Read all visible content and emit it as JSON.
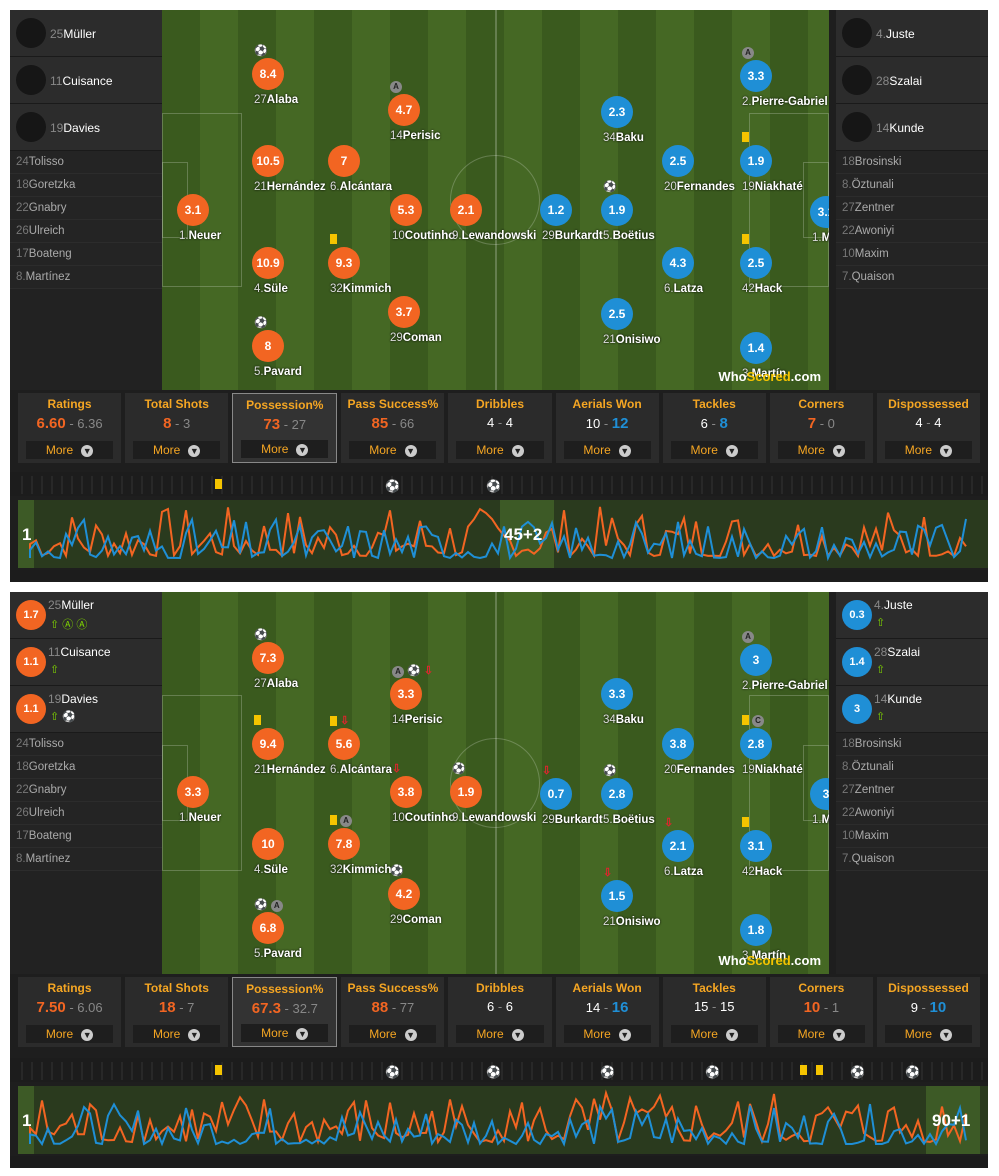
{
  "snapshots": [
    {
      "home_bench": [
        {
          "num": "25",
          "name": "Müller"
        },
        {
          "num": "11",
          "name": "Cuisance"
        },
        {
          "num": "19",
          "name": "Davies"
        }
      ],
      "home_unused": [
        {
          "num": "24",
          "name": "Tolisso"
        },
        {
          "num": "18",
          "name": "Goretzka"
        },
        {
          "num": "22",
          "name": "Gnabry"
        },
        {
          "num": "26",
          "name": "Ulreich"
        },
        {
          "num": "17",
          "name": "Boateng"
        },
        {
          "num": "8.",
          "name": "Martínez"
        }
      ],
      "away_bench": [
        {
          "num": "4.",
          "name": "Juste"
        },
        {
          "num": "28",
          "name": "Szalai"
        },
        {
          "num": "14",
          "name": "Kunde"
        }
      ],
      "away_unused": [
        {
          "num": "18",
          "name": "Brosinski"
        },
        {
          "num": "8.",
          "name": "Öztunali"
        },
        {
          "num": "27",
          "name": "Zentner"
        },
        {
          "num": "22",
          "name": "Awoniyi"
        },
        {
          "num": "10",
          "name": "Maxim"
        },
        {
          "num": "7.",
          "name": "Quaison"
        }
      ],
      "players": [
        {
          "team": "h",
          "rating": "8.4",
          "num": "27",
          "name": "Alaba",
          "icons": "⚽"
        },
        {
          "team": "h",
          "rating": "4.7",
          "num": "14",
          "name": "Perisic",
          "icons": "A"
        },
        {
          "team": "h",
          "rating": "10.5",
          "num": "21",
          "name": "Hernández",
          "icons": ""
        },
        {
          "team": "h",
          "rating": "7",
          "num": "6.",
          "name": "Alcántara",
          "icons": ""
        },
        {
          "team": "h",
          "rating": "3.1",
          "num": "1.",
          "name": "Neuer",
          "icons": ""
        },
        {
          "team": "h",
          "rating": "5.3",
          "num": "10",
          "name": "Coutinho",
          "icons": ""
        },
        {
          "team": "h",
          "rating": "2.1",
          "num": "9.",
          "name": "Lewandowski",
          "icons": ""
        },
        {
          "team": "h",
          "rating": "10.9",
          "num": "4.",
          "name": "Süle",
          "icons": ""
        },
        {
          "team": "h",
          "rating": "9.3",
          "num": "32",
          "name": "Kimmich",
          "icons": "Y"
        },
        {
          "team": "h",
          "rating": "3.7",
          "num": "29",
          "name": "Coman",
          "icons": ""
        },
        {
          "team": "h",
          "rating": "8",
          "num": "5.",
          "name": "Pavard",
          "icons": "⚽"
        },
        {
          "team": "a",
          "rating": "3.3",
          "num": "2.",
          "name": "Pierre-Gabriel",
          "icons": "A"
        },
        {
          "team": "a",
          "rating": "2.3",
          "num": "34",
          "name": "Baku",
          "icons": ""
        },
        {
          "team": "a",
          "rating": "2.5",
          "num": "20",
          "name": "Fernandes",
          "icons": ""
        },
        {
          "team": "a",
          "rating": "1.9",
          "num": "19",
          "name": "Niakhaté",
          "icons": "Y"
        },
        {
          "team": "a",
          "rating": "1.2",
          "num": "29",
          "name": "Burkardt",
          "icons": ""
        },
        {
          "team": "a",
          "rating": "1.9",
          "num": "5.",
          "name": "Boëtius",
          "icons": "⚽"
        },
        {
          "team": "a",
          "rating": "3.1",
          "num": "1.",
          "name": "Müller",
          "icons": ""
        },
        {
          "team": "a",
          "rating": "4.3",
          "num": "6.",
          "name": "Latza",
          "icons": ""
        },
        {
          "team": "a",
          "rating": "2.5",
          "num": "42",
          "name": "Hack",
          "icons": "Y"
        },
        {
          "team": "a",
          "rating": "2.5",
          "num": "21",
          "name": "Onisiwo",
          "icons": ""
        },
        {
          "team": "a",
          "rating": "1.4",
          "num": "3.",
          "name": "Martín",
          "icons": ""
        }
      ],
      "stats": [
        {
          "title": "Ratings",
          "home": "6.60",
          "away": "6.36",
          "lead": "h"
        },
        {
          "title": "Total Shots",
          "home": "8",
          "away": "3",
          "lead": "h"
        },
        {
          "title": "Possession%",
          "home": "73",
          "away": "27",
          "lead": "h"
        },
        {
          "title": "Pass Success%",
          "home": "85",
          "away": "66",
          "lead": "h"
        },
        {
          "title": "Dribbles",
          "home": "4",
          "away": "4",
          "lead": ""
        },
        {
          "title": "Aerials Won",
          "home": "10",
          "away": "12",
          "lead": "a"
        },
        {
          "title": "Tackles",
          "home": "6",
          "away": "8",
          "lead": "a"
        },
        {
          "title": "Corners",
          "home": "7",
          "away": "0",
          "lead": "h"
        },
        {
          "title": "Dispossessed",
          "home": "4",
          "away": "4",
          "lead": ""
        }
      ],
      "tl_start": "1",
      "tl_end": "45+2"
    },
    {
      "home_bench": [
        {
          "num": "25",
          "name": "Müller",
          "rating": "1.7",
          "ev": "⇧ Ⓐ Ⓐ"
        },
        {
          "num": "11",
          "name": "Cuisance",
          "rating": "1.1",
          "ev": "⇧"
        },
        {
          "num": "19",
          "name": "Davies",
          "rating": "1.1",
          "ev": "⇧ ⚽"
        }
      ],
      "home_unused": [
        {
          "num": "24",
          "name": "Tolisso"
        },
        {
          "num": "18",
          "name": "Goretzka"
        },
        {
          "num": "22",
          "name": "Gnabry"
        },
        {
          "num": "26",
          "name": "Ulreich"
        },
        {
          "num": "17",
          "name": "Boateng"
        },
        {
          "num": "8.",
          "name": "Martínez"
        }
      ],
      "away_bench": [
        {
          "num": "4.",
          "name": "Juste",
          "rating": "0.3",
          "ev": "⇧"
        },
        {
          "num": "28",
          "name": "Szalai",
          "rating": "1.4",
          "ev": "⇧"
        },
        {
          "num": "14",
          "name": "Kunde",
          "rating": "3",
          "ev": "⇧"
        }
      ],
      "away_unused": [
        {
          "num": "18",
          "name": "Brosinski"
        },
        {
          "num": "8.",
          "name": "Öztunali"
        },
        {
          "num": "27",
          "name": "Zentner"
        },
        {
          "num": "22",
          "name": "Awoniyi"
        },
        {
          "num": "10",
          "name": "Maxim"
        },
        {
          "num": "7.",
          "name": "Quaison"
        }
      ],
      "players": [
        {
          "team": "h",
          "rating": "7.3",
          "num": "27",
          "name": "Alaba",
          "icons": "⚽"
        },
        {
          "team": "h",
          "rating": "3.3",
          "num": "14",
          "name": "Perisic",
          "icons": "A⚽↓"
        },
        {
          "team": "h",
          "rating": "9.4",
          "num": "21",
          "name": "Hernández",
          "icons": "Y"
        },
        {
          "team": "h",
          "rating": "5.6",
          "num": "6.",
          "name": "Alcántara",
          "icons": "Y↓"
        },
        {
          "team": "h",
          "rating": "3.3",
          "num": "1.",
          "name": "Neuer",
          "icons": ""
        },
        {
          "team": "h",
          "rating": "3.8",
          "num": "10",
          "name": "Coutinho",
          "icons": "↓"
        },
        {
          "team": "h",
          "rating": "1.9",
          "num": "9.",
          "name": "Lewandowski",
          "icons": "⚽"
        },
        {
          "team": "h",
          "rating": "10",
          "num": "4.",
          "name": "Süle",
          "icons": ""
        },
        {
          "team": "h",
          "rating": "7.8",
          "num": "32",
          "name": "Kimmich",
          "icons": "YA"
        },
        {
          "team": "h",
          "rating": "4.2",
          "num": "29",
          "name": "Coman",
          "icons": "⚽"
        },
        {
          "team": "h",
          "rating": "6.8",
          "num": "5.",
          "name": "Pavard",
          "icons": "⚽A"
        },
        {
          "team": "a",
          "rating": "3",
          "num": "2.",
          "name": "Pierre-Gabriel",
          "icons": "A"
        },
        {
          "team": "a",
          "rating": "3.3",
          "num": "34",
          "name": "Baku",
          "icons": ""
        },
        {
          "team": "a",
          "rating": "3.8",
          "num": "20",
          "name": "Fernandes",
          "icons": ""
        },
        {
          "team": "a",
          "rating": "2.8",
          "num": "19",
          "name": "Niakhaté",
          "icons": "YC"
        },
        {
          "team": "a",
          "rating": "0.7",
          "num": "29",
          "name": "Burkardt",
          "icons": "↓"
        },
        {
          "team": "a",
          "rating": "2.8",
          "num": "5.",
          "name": "Boëtius",
          "icons": "⚽"
        },
        {
          "team": "a",
          "rating": "3",
          "num": "1.",
          "name": "Müller",
          "icons": ""
        },
        {
          "team": "a",
          "rating": "2.1",
          "num": "6.",
          "name": "Latza",
          "icons": "↓"
        },
        {
          "team": "a",
          "rating": "3.1",
          "num": "42",
          "name": "Hack",
          "icons": "Y"
        },
        {
          "team": "a",
          "rating": "1.5",
          "num": "21",
          "name": "Onisiwo",
          "icons": "↓"
        },
        {
          "team": "a",
          "rating": "1.8",
          "num": "3.",
          "name": "Martín",
          "icons": ""
        }
      ],
      "stats": [
        {
          "title": "Ratings",
          "home": "7.50",
          "away": "6.06",
          "lead": "h"
        },
        {
          "title": "Total Shots",
          "home": "18",
          "away": "7",
          "lead": "h"
        },
        {
          "title": "Possession%",
          "home": "67.3",
          "away": "32.7",
          "lead": "h"
        },
        {
          "title": "Pass Success%",
          "home": "88",
          "away": "77",
          "lead": "h"
        },
        {
          "title": "Dribbles",
          "home": "6",
          "away": "6",
          "lead": ""
        },
        {
          "title": "Aerials Won",
          "home": "14",
          "away": "16",
          "lead": "a"
        },
        {
          "title": "Tackles",
          "home": "15",
          "away": "15",
          "lead": ""
        },
        {
          "title": "Corners",
          "home": "10",
          "away": "1",
          "lead": "h"
        },
        {
          "title": "Dispossessed",
          "home": "9",
          "away": "10",
          "lead": "a"
        }
      ],
      "tl_start": "1",
      "tl_end": "90+1"
    }
  ],
  "more_label": "More",
  "logo_a": "Who",
  "logo_b": "Scored",
  "logo_c": ".com",
  "colors": {
    "home": "#f26522",
    "away": "#1f8fd6",
    "card": "#f5c400"
  }
}
